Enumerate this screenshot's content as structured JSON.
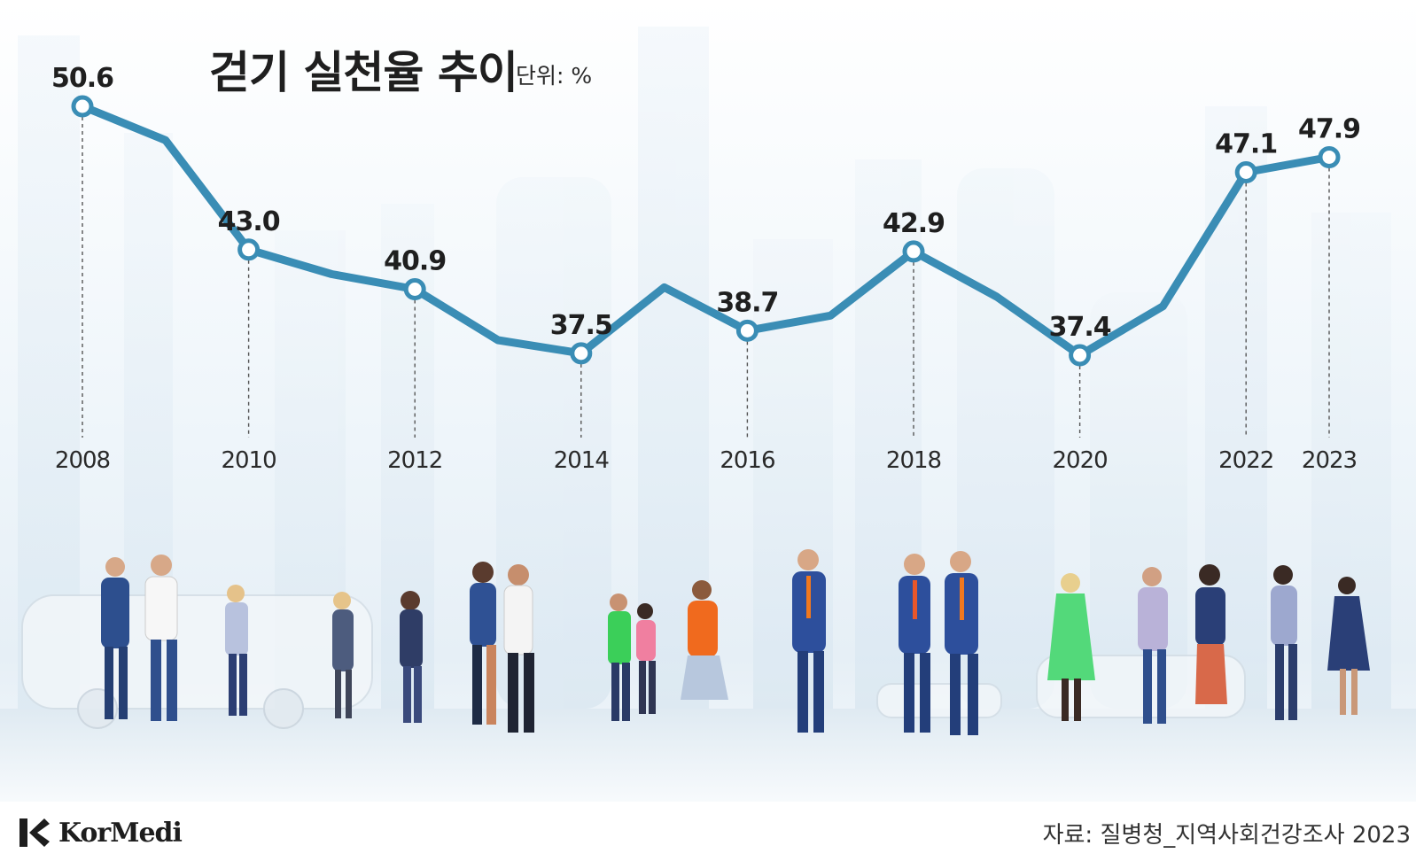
{
  "header": {
    "title": "걷기 실천율 추이",
    "unit": "단위: %"
  },
  "footer": {
    "source": "자료: 질병청_지역사회건강조사 2023",
    "logo_text": "KorMedi"
  },
  "colors": {
    "line": "#3a8db5",
    "marker_fill": "#ffffff",
    "text": "#1f1f1f"
  },
  "chart_data": {
    "type": "line",
    "title": "걷기 실천율 추이",
    "unit": "단위: %",
    "xlabel": "",
    "ylabel": "",
    "ylim": [
      30,
      55
    ],
    "grid": false,
    "legend": "none",
    "x": [
      2008,
      2009,
      2010,
      2011,
      2012,
      2013,
      2014,
      2015,
      2016,
      2017,
      2018,
      2019,
      2020,
      2021,
      2022,
      2023
    ],
    "values": [
      50.6,
      48.8,
      43.0,
      41.7,
      40.9,
      38.2,
      37.5,
      41.0,
      38.7,
      39.5,
      42.9,
      40.5,
      37.4,
      40.0,
      47.1,
      47.9
    ],
    "labeled_points": [
      {
        "x": 2008,
        "y": 50.6,
        "label": "50.6",
        "tick": "2008"
      },
      {
        "x": 2010,
        "y": 43.0,
        "label": "43.0",
        "tick": "2010"
      },
      {
        "x": 2012,
        "y": 40.9,
        "label": "40.9",
        "tick": "2012"
      },
      {
        "x": 2014,
        "y": 37.5,
        "label": "37.5",
        "tick": "2014"
      },
      {
        "x": 2016,
        "y": 38.7,
        "label": "38.7",
        "tick": "2016"
      },
      {
        "x": 2018,
        "y": 42.9,
        "label": "42.9",
        "tick": "2018"
      },
      {
        "x": 2020,
        "y": 37.4,
        "label": "37.4",
        "tick": "2020"
      },
      {
        "x": 2022,
        "y": 47.1,
        "label": "47.1",
        "tick": "2022"
      },
      {
        "x": 2023,
        "y": 47.9,
        "label": "47.9",
        "tick": "2023"
      }
    ]
  }
}
